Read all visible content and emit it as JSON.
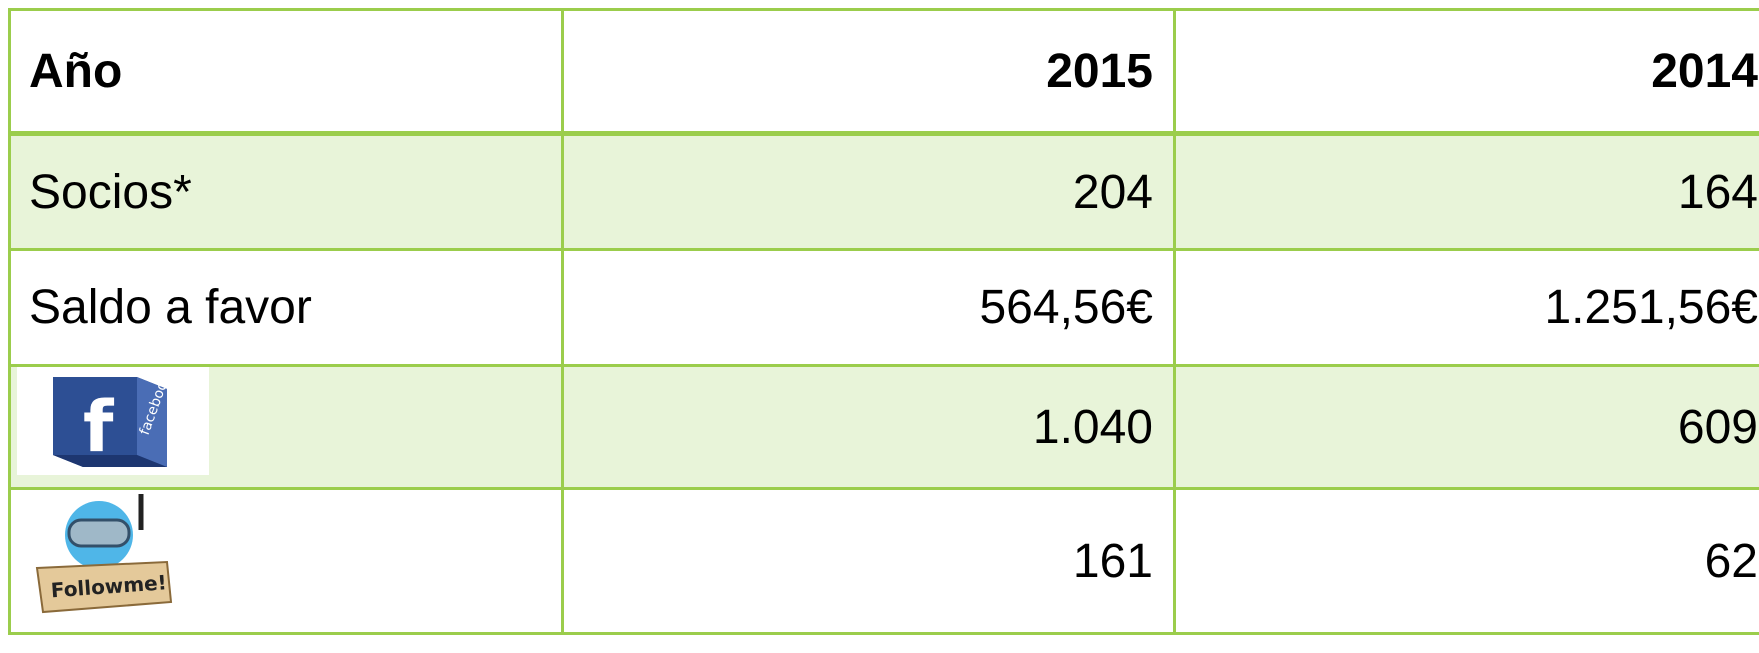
{
  "table": {
    "header": [
      "Año",
      "2015",
      "2014"
    ],
    "rows": [
      [
        "Socios*",
        "204",
        "164"
      ],
      [
        "Saldo a favor",
        "564,56€",
        "1.251,56€"
      ],
      [
        "facebook",
        "1.040",
        "609"
      ],
      [
        "Followme!",
        "161",
        "62"
      ]
    ]
  }
}
